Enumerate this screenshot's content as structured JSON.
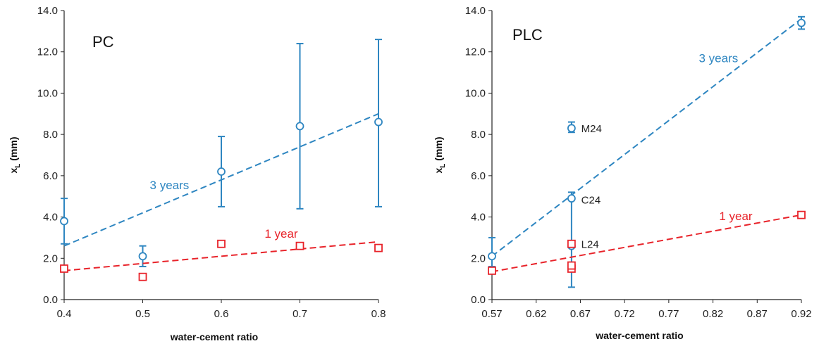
{
  "colors": {
    "three_years": "#2E86C1",
    "one_year": "#E8232A",
    "axis": "#222222"
  },
  "chart_data": [
    {
      "type": "scatter",
      "title": "PC",
      "xlabel": "water-cement ratio",
      "ylabel_main": "x",
      "ylabel_sub": "L",
      "ylabel_unit": " (mm)",
      "xlim": [
        0.4,
        0.8
      ],
      "ylim": [
        0,
        14
      ],
      "x_ticks": [
        0.4,
        0.5,
        0.6,
        0.7,
        0.8
      ],
      "x_tick_labels": [
        "0.4",
        "0.5",
        "0.6",
        "0.7",
        "0.8"
      ],
      "y_ticks": [
        0,
        2,
        4,
        6,
        8,
        10,
        12,
        14
      ],
      "y_tick_labels": [
        "0.0",
        "2.0",
        "4.0",
        "6.0",
        "8.0",
        "10.0",
        "12.0",
        "14.0"
      ],
      "series": [
        {
          "name": "3 years",
          "color_key": "three_years",
          "marker": "circle",
          "x": [
            0.4,
            0.5,
            0.6,
            0.7,
            0.8
          ],
          "y": [
            3.8,
            2.1,
            6.2,
            8.4,
            8.6
          ],
          "err_low": [
            2.7,
            1.6,
            4.5,
            4.4,
            4.5
          ],
          "err_high": [
            4.9,
            2.6,
            7.9,
            12.4,
            12.6
          ],
          "trend": [
            [
              0.4,
              2.6
            ],
            [
              0.8,
              9.0
            ]
          ]
        },
        {
          "name": "1 year",
          "color_key": "one_year",
          "marker": "square",
          "x": [
            0.4,
            0.5,
            0.6,
            0.7,
            0.8
          ],
          "y": [
            1.5,
            1.1,
            2.7,
            2.6,
            2.5
          ],
          "trend": [
            [
              0.4,
              1.4
            ],
            [
              0.8,
              2.8
            ]
          ]
        }
      ],
      "annotations": [
        {
          "text": "3 years",
          "x": 0.509,
          "y": 5.35,
          "color_key": "three_years"
        },
        {
          "text": "1 year",
          "x": 0.655,
          "y": 3.0,
          "color_key": "one_year"
        }
      ]
    },
    {
      "type": "scatter",
      "title": "PLC",
      "xlabel": "water-cement ratio",
      "ylabel_main": "x",
      "ylabel_sub": "L",
      "ylabel_unit": " (mm)",
      "xlim": [
        0.57,
        0.92
      ],
      "ylim": [
        0,
        14
      ],
      "x_ticks": [
        0.57,
        0.62,
        0.67,
        0.72,
        0.77,
        0.82,
        0.87,
        0.92
      ],
      "x_tick_labels": [
        "0.57",
        "0.62",
        "0.67",
        "0.72",
        "0.77",
        "0.82",
        "0.87",
        "0.92"
      ],
      "y_ticks": [
        0,
        2,
        4,
        6,
        8,
        10,
        12,
        14
      ],
      "y_tick_labels": [
        "0.0",
        "2.0",
        "4.0",
        "6.0",
        "8.0",
        "10.0",
        "12.0",
        "14.0"
      ],
      "series": [
        {
          "name": "3 years",
          "color_key": "three_years",
          "marker": "circle",
          "x": [
            0.57,
            0.66,
            0.66,
            0.66,
            0.92
          ],
          "y": [
            2.1,
            4.9,
            8.3,
            2.6,
            13.4
          ],
          "err_low": [
            1.6,
            0.6,
            8.1,
            2.6,
            13.1
          ],
          "err_high": [
            3.0,
            5.2,
            8.6,
            2.6,
            13.7
          ],
          "trend": [
            [
              0.57,
              2.1
            ],
            [
              0.92,
              13.6
            ]
          ]
        },
        {
          "name": "1 year",
          "color_key": "one_year",
          "marker": "square",
          "x": [
            0.57,
            0.66,
            0.66,
            0.66,
            0.92
          ],
          "y": [
            1.4,
            1.5,
            1.65,
            2.7,
            4.1
          ],
          "trend": [
            [
              0.57,
              1.35
            ],
            [
              0.92,
              4.1
            ]
          ]
        }
      ],
      "annotations": [
        {
          "text": "3 years",
          "x": 0.804,
          "y": 11.5,
          "color_key": "three_years"
        },
        {
          "text": "1 year",
          "x": 0.827,
          "y": 3.85,
          "color_key": "one_year"
        },
        {
          "text": "M24",
          "x": 0.671,
          "y": 8.1,
          "color_key": "axis"
        },
        {
          "text": "C24",
          "x": 0.671,
          "y": 4.65,
          "color_key": "axis"
        },
        {
          "text": "L24",
          "x": 0.671,
          "y": 2.5,
          "color_key": "axis"
        }
      ]
    }
  ]
}
